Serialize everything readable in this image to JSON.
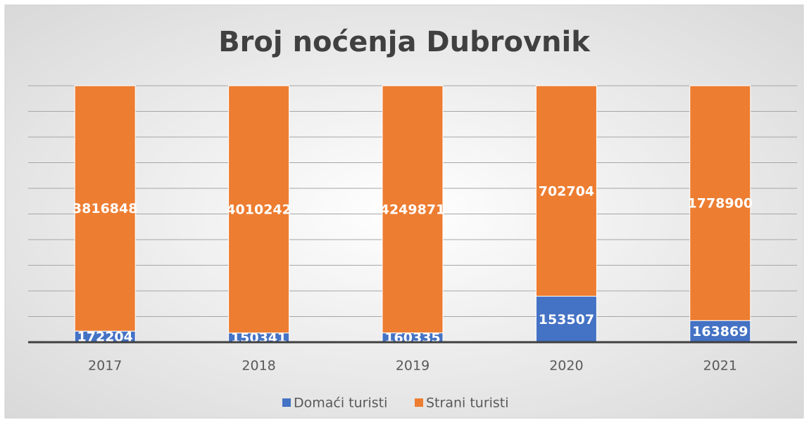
{
  "chart_data": {
    "type": "bar",
    "stacking": "percent",
    "title": "Broj noćenja Dubrovnik",
    "categories": [
      "2017",
      "2018",
      "2019",
      "2020",
      "2021"
    ],
    "series": [
      {
        "name": "Domaći turisti",
        "color": "#4472c4",
        "values": [
          172204,
          150341,
          160335,
          153507,
          163869
        ]
      },
      {
        "name": "Strani turisti",
        "color": "#ed7d31",
        "values": [
          3816848,
          4010242,
          4249871,
          702704,
          1778900
        ]
      }
    ],
    "ylim": [
      0,
      100
    ],
    "yticks": [
      0,
      10,
      20,
      30,
      40,
      50,
      60,
      70,
      80,
      90,
      100
    ],
    "show_ytick_labels": false,
    "grid": true,
    "legend": "bottom"
  }
}
